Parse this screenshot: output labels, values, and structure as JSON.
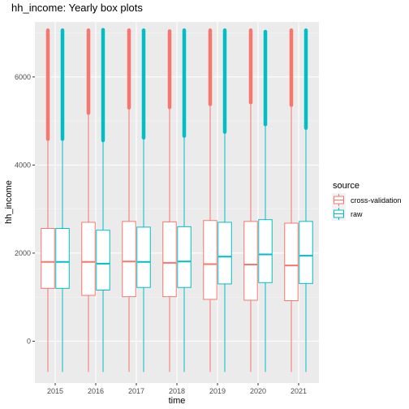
{
  "chart_data": {
    "type": "box",
    "title": "hh_income: Yearly box plots",
    "xlabel": "time",
    "ylabel": "hh_income",
    "categories": [
      "2015",
      "2016",
      "2017",
      "2018",
      "2019",
      "2020",
      "2021"
    ],
    "ylim": [
      -950,
      7250
    ],
    "yticks": [
      0,
      2000,
      4000,
      6000
    ],
    "grid": true,
    "legend": {
      "title": "source",
      "position": "right"
    },
    "series": [
      {
        "name": "cross-validation",
        "color": "#F8766D",
        "boxes": [
          {
            "whisker_low": -700,
            "q1": 1200,
            "median": 1800,
            "q3": 2560,
            "whisker_high": 4590,
            "outlier_max": 7060
          },
          {
            "whisker_low": -700,
            "q1": 1040,
            "median": 1800,
            "q3": 2700,
            "whisker_high": 5180,
            "outlier_max": 7060
          },
          {
            "whisker_low": -700,
            "q1": 1010,
            "median": 1810,
            "q3": 2720,
            "whisker_high": 5300,
            "outlier_max": 7060
          },
          {
            "whisker_low": -700,
            "q1": 1010,
            "median": 1780,
            "q3": 2710,
            "whisker_high": 5310,
            "outlier_max": 7040
          },
          {
            "whisker_low": -700,
            "q1": 950,
            "median": 1750,
            "q3": 2740,
            "whisker_high": 5380,
            "outlier_max": 7060
          },
          {
            "whisker_low": -700,
            "q1": 930,
            "median": 1740,
            "q3": 2720,
            "whisker_high": 5420,
            "outlier_max": 7060
          },
          {
            "whisker_low": -700,
            "q1": 920,
            "median": 1720,
            "q3": 2680,
            "whisker_high": 5360,
            "outlier_max": 7060
          }
        ]
      },
      {
        "name": "raw",
        "color": "#00BFC4",
        "boxes": [
          {
            "whisker_low": -700,
            "q1": 1200,
            "median": 1800,
            "q3": 2560,
            "whisker_high": 4590,
            "outlier_max": 7060
          },
          {
            "whisker_low": -700,
            "q1": 1160,
            "median": 1760,
            "q3": 2520,
            "whisker_high": 4560,
            "outlier_max": 7070
          },
          {
            "whisker_low": -700,
            "q1": 1220,
            "median": 1800,
            "q3": 2590,
            "whisker_high": 4620,
            "outlier_max": 7060
          },
          {
            "whisker_low": -700,
            "q1": 1220,
            "median": 1810,
            "q3": 2600,
            "whisker_high": 4660,
            "outlier_max": 7060
          },
          {
            "whisker_low": -700,
            "q1": 1300,
            "median": 1920,
            "q3": 2700,
            "whisker_high": 4750,
            "outlier_max": 7060
          },
          {
            "whisker_low": -700,
            "q1": 1330,
            "median": 1970,
            "q3": 2760,
            "whisker_high": 4920,
            "outlier_max": 7030
          },
          {
            "whisker_low": -700,
            "q1": 1310,
            "median": 1940,
            "q3": 2720,
            "whisker_high": 4840,
            "outlier_max": 7060
          }
        ]
      }
    ]
  }
}
